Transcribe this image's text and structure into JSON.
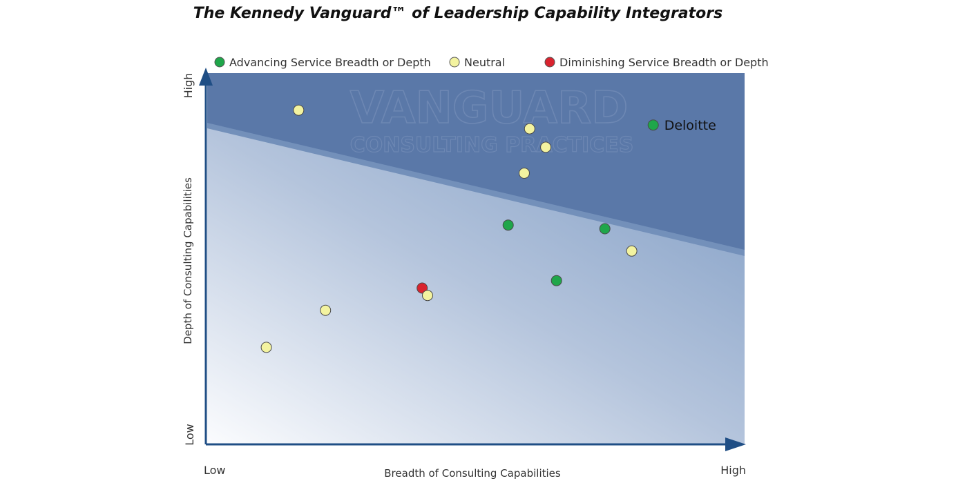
{
  "chart_data": {
    "type": "scatter",
    "title": "The Kennedy Vanguard™ of Leadership Capability Integrators",
    "xlabel": "Breadth of Consulting Capabilities",
    "ylabel": "Depth of Consulting Capabilities",
    "x_low_label": "Low",
    "x_high_label": "High",
    "y_low_label": "Low",
    "y_high_label": "High",
    "xlim": [
      0,
      10
    ],
    "ylim": [
      0,
      10
    ],
    "grid": false,
    "legend_position": "top",
    "watermark": [
      "VANGUARD",
      "CONSULTING PRACTICES"
    ],
    "colors": {
      "advancing": "#1fa64a",
      "neutral": "#f3f3a0",
      "diminishing": "#d9232e",
      "zone_top": "#5a78a8",
      "zone_bottom": "#8aa6ca"
    },
    "legend": [
      {
        "key": "advancing",
        "label": "Advancing Service Breadth or Depth"
      },
      {
        "key": "neutral",
        "label": "Neutral"
      },
      {
        "key": "diminishing",
        "label": "Diminishing Service Breadth or Depth"
      }
    ],
    "points": [
      {
        "x": 1.1,
        "y": 2.6,
        "category": "neutral"
      },
      {
        "x": 2.2,
        "y": 3.6,
        "category": "neutral"
      },
      {
        "x": 1.7,
        "y": 9.0,
        "category": "neutral"
      },
      {
        "x": 4.0,
        "y": 4.2,
        "category": "diminishing"
      },
      {
        "x": 4.1,
        "y": 4.0,
        "category": "neutral"
      },
      {
        "x": 5.6,
        "y": 5.9,
        "category": "advancing"
      },
      {
        "x": 5.9,
        "y": 7.3,
        "category": "neutral"
      },
      {
        "x": 6.0,
        "y": 8.5,
        "category": "neutral"
      },
      {
        "x": 6.3,
        "y": 8.0,
        "category": "neutral"
      },
      {
        "x": 6.5,
        "y": 4.4,
        "category": "advancing"
      },
      {
        "x": 7.4,
        "y": 5.8,
        "category": "advancing"
      },
      {
        "x": 7.9,
        "y": 5.2,
        "category": "neutral"
      },
      {
        "x": 8.3,
        "y": 8.6,
        "category": "advancing",
        "label": "Deloitte"
      }
    ]
  }
}
